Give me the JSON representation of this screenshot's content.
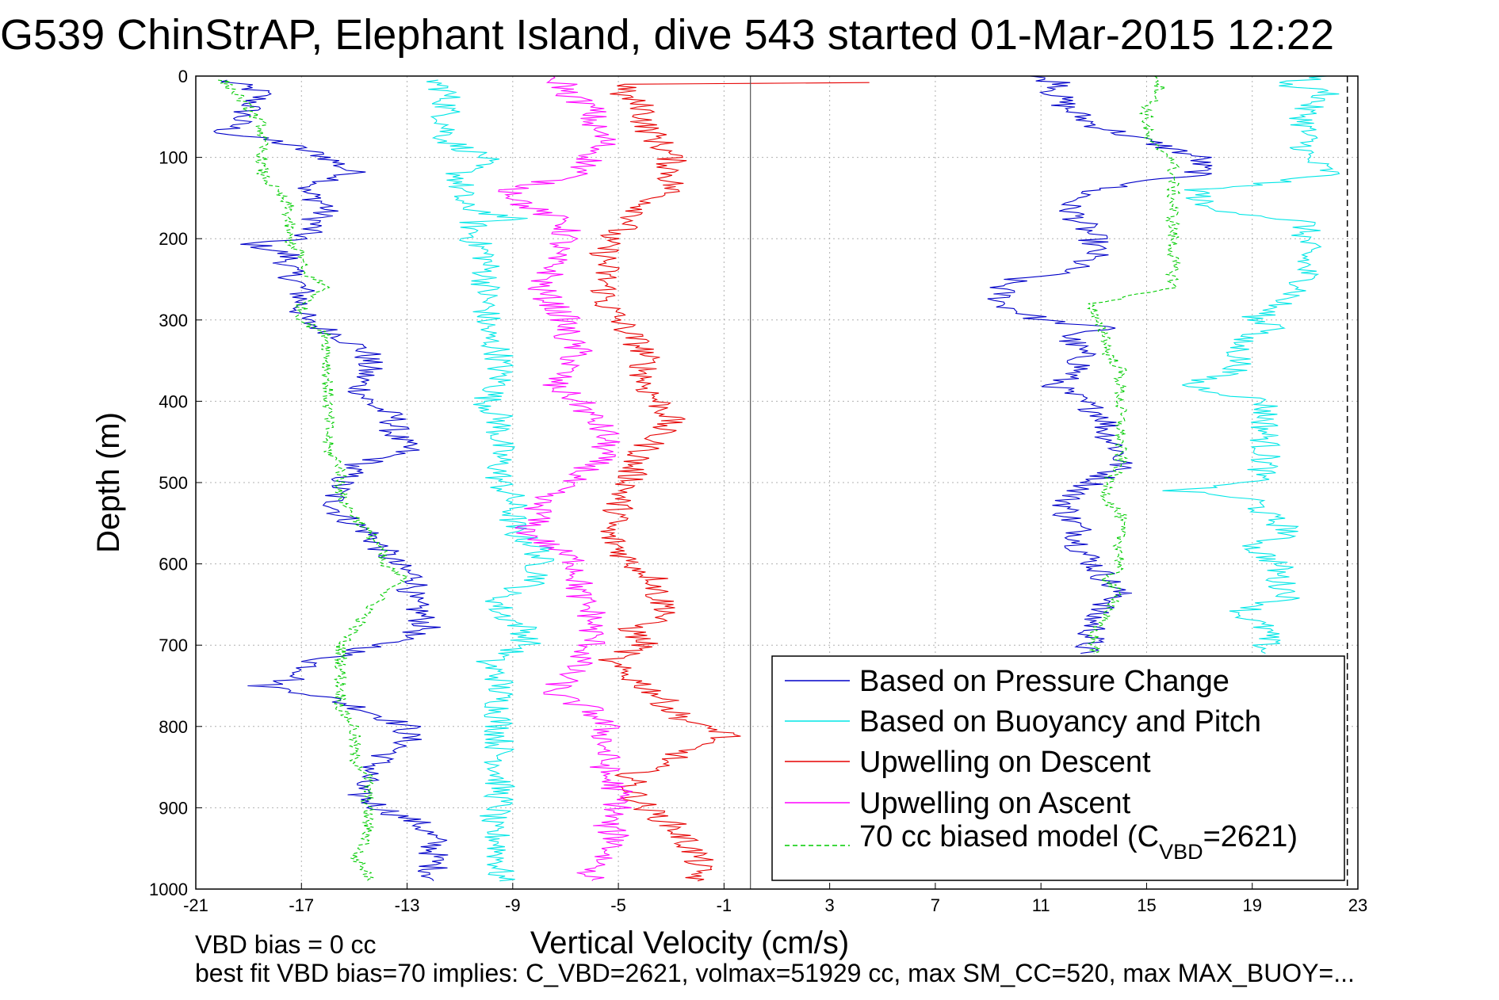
{
  "chart_data": {
    "type": "line",
    "title": "G539 ChinStrAP, Elephant Island, dive 543 started 01-Mar-2015 12:22",
    "xlabel": "Vertical Velocity (cm/s)",
    "ylabel": "Depth (m)",
    "xlim": [
      -21,
      23
    ],
    "ylim": [
      0,
      1000
    ],
    "y_reversed": true,
    "grid": true,
    "x_ticks": [
      "-21",
      "-17",
      "-13",
      "-9",
      "-5",
      "-1",
      "3",
      "7",
      "11",
      "15",
      "19",
      "23"
    ],
    "y_ticks": [
      "0",
      "100",
      "200",
      "300",
      "400",
      "500",
      "600",
      "700",
      "800",
      "900",
      "1000"
    ],
    "legend_position": "bottom-right",
    "legend": [
      "Based on Pressure Change",
      "Based on Buoyancy and Pitch",
      "Upwelling on Descent",
      "Upwelling on Ascent"
    ],
    "legend_model_prefix": "70 cc biased model (C",
    "legend_model_sub": "VBD",
    "legend_model_suffix": "=2621)",
    "colors": {
      "pressure": "#0000c8",
      "buoyancy": "#00e6e6",
      "descent": "#e60000",
      "ascent": "#ff00ff",
      "model": "#00cc00",
      "vline": "#000000",
      "zero_line": "#555555"
    },
    "vertical_line_x": 22.6,
    "zero_line_x": 0,
    "series": [
      {
        "name": "Based on Pressure Change",
        "segments": [
          {
            "depth": [
              5,
              20,
              40,
              60,
              70,
              80,
              100,
              110,
              120,
              140,
              160,
              180,
              200,
              205,
              220,
              240,
              260,
              280,
              300,
              320,
              340,
              360,
              380,
              400,
              420,
              440,
              460,
              480,
              500,
              520,
              540,
              560,
              580,
              600,
              620,
              640,
              660,
              680,
              700,
              720,
              740,
              750,
              760,
              780,
              800,
              820,
              840,
              860,
              880,
              900,
              920,
              940,
              960,
              980,
              990
            ],
            "x": [
              -20,
              -18.5,
              -19,
              -19.5,
              -20,
              -18,
              -16,
              -15.5,
              -15,
              -17,
              -16,
              -16.5,
              -17,
              -19,
              -17.5,
              -17.5,
              -17,
              -17,
              -17,
              -15.5,
              -14.5,
              -14.5,
              -14.8,
              -14.5,
              -13.5,
              -13.5,
              -13,
              -15,
              -15.5,
              -15.8,
              -15.5,
              -14.5,
              -14,
              -13.5,
              -12.5,
              -13,
              -12.5,
              -12.3,
              -14,
              -16.5,
              -17,
              -18.5,
              -16.5,
              -14.5,
              -13,
              -13,
              -14,
              -14.5,
              -15,
              -14,
              -12.5,
              -12,
              -12,
              -12,
              -12
            ]
          },
          {
            "depth": [
              0,
              10,
              20,
              40,
              60,
              80,
              100,
              120,
              130,
              140,
              160,
              180,
              200,
              220,
              240,
              250,
              260,
              280,
              300,
              310,
              320,
              340,
              360,
              380,
              400,
              420,
              440,
              460,
              480,
              500,
              520,
              540,
              560,
              580,
              600,
              620,
              640,
              660,
              680,
              700,
              710
            ],
            "x": [
              10.5,
              12,
              11.5,
              12,
              13,
              15,
              17,
              17,
              15,
              13,
              12,
              12.5,
              13,
              13,
              12,
              10,
              9.5,
              9.5,
              11,
              13.5,
              12,
              12.5,
              12.5,
              11.5,
              12.5,
              13.5,
              13.5,
              14,
              14,
              13,
              12,
              12,
              12.5,
              12.5,
              13,
              13.5,
              14,
              13,
              13,
              12.8,
              12.5
            ]
          }
        ]
      },
      {
        "name": "Based on Buoyancy and Pitch",
        "segments": [
          {
            "depth": [
              5,
              20,
              40,
              60,
              80,
              100,
              120,
              140,
              160,
              175,
              180,
              200,
              220,
              240,
              260,
              280,
              300,
              320,
              340,
              360,
              380,
              400,
              420,
              440,
              460,
              480,
              500,
              520,
              540,
              560,
              580,
              600,
              620,
              640,
              660,
              680,
              700,
              720,
              740,
              760,
              780,
              800,
              820,
              840,
              860,
              880,
              900,
              920,
              940,
              960,
              980,
              990
            ],
            "x": [
              -12,
              -11.5,
              -11.5,
              -11.5,
              -11.5,
              -10,
              -11,
              -11,
              -11,
              -9,
              -10.5,
              -10.5,
              -10,
              -10,
              -10,
              -10,
              -10,
              -10,
              -9.5,
              -9.5,
              -9.5,
              -10,
              -9.5,
              -9.5,
              -9.5,
              -9.5,
              -9.5,
              -9,
              -9,
              -9,
              -8,
              -8,
              -8,
              -9.5,
              -9.5,
              -8.5,
              -8.5,
              -10,
              -9.5,
              -9.5,
              -9.5,
              -9.5,
              -9.5,
              -9.5,
              -9.5,
              -9.5,
              -9.5,
              -10,
              -9.5,
              -9.5,
              -9.5,
              -9.5
            ]
          },
          {
            "depth": [
              0,
              10,
              20,
              40,
              60,
              80,
              100,
              120,
              130,
              140,
              160,
              180,
              200,
              220,
              240,
              260,
              280,
              300,
              310,
              320,
              340,
              360,
              380,
              400,
              420,
              440,
              460,
              480,
              500,
              510,
              520,
              540,
              560,
              580,
              600,
              620,
              640,
              660,
              680,
              700,
              710
            ],
            "x": [
              22,
              20,
              22,
              21,
              21,
              21,
              21,
              22,
              20,
              17,
              17,
              21,
              21,
              21,
              21,
              21,
              20,
              19,
              20.5,
              18.5,
              18.5,
              18.5,
              16.5,
              19.5,
              19.5,
              19.5,
              19.5,
              19.5,
              19,
              16,
              19,
              19.5,
              20.5,
              19,
              20,
              20,
              20.5,
              18.5,
              19.5,
              19.5,
              19.5
            ]
          }
        ]
      },
      {
        "name": "Upwelling on Descent",
        "segments": [
          {
            "depth": [
              8,
              10,
              20,
              40,
              60,
              80,
              100,
              120,
              140,
              160,
              180,
              200,
              220,
              240,
              260,
              280,
              300,
              320,
              340,
              360,
              380,
              400,
              420,
              440,
              460,
              480,
              500,
              520,
              540,
              560,
              580,
              600,
              620,
              640,
              660,
              680,
              700,
              720,
              740,
              760,
              780,
              800,
              810,
              820,
              840,
              860,
              880,
              900,
              920,
              940,
              960,
              980,
              990
            ],
            "x": [
              4.5,
              -4.5,
              -5,
              -4,
              -4,
              -3.5,
              -3,
              -3,
              -3,
              -4,
              -4.5,
              -5.5,
              -5.5,
              -5.5,
              -5.5,
              -5.5,
              -5,
              -4.5,
              -4,
              -4,
              -4,
              -3.5,
              -3,
              -3.5,
              -4,
              -4.5,
              -4.5,
              -5,
              -5,
              -5.5,
              -5,
              -4.5,
              -3.5,
              -3.5,
              -3,
              -4.5,
              -4,
              -5.5,
              -4.5,
              -3.5,
              -3,
              -2,
              -0.5,
              -2,
              -3,
              -4.5,
              -4.5,
              -4,
              -3,
              -2.5,
              -2,
              -2,
              -2
            ]
          }
        ]
      },
      {
        "name": "Upwelling on Ascent",
        "segments": [
          {
            "depth": [
              0,
              10,
              20,
              40,
              60,
              80,
              100,
              120,
              140,
              160,
              180,
              200,
              220,
              240,
              260,
              280,
              300,
              320,
              340,
              360,
              380,
              400,
              420,
              440,
              460,
              480,
              500,
              520,
              540,
              560,
              580,
              600,
              620,
              640,
              660,
              680,
              700,
              720,
              740,
              760,
              780,
              800,
              820,
              840,
              860,
              880,
              900,
              920,
              940,
              960,
              980,
              990
            ],
            "x": [
              -8,
              -7,
              -7,
              -6,
              -6,
              -5.5,
              -6,
              -6.5,
              -9,
              -8.5,
              -7,
              -7,
              -7.5,
              -7.5,
              -8,
              -7.5,
              -7,
              -7,
              -6.5,
              -7,
              -7.5,
              -6.5,
              -6,
              -5.5,
              -5.5,
              -6,
              -7,
              -8,
              -8,
              -8.5,
              -7.5,
              -6.5,
              -6.5,
              -6.5,
              -6,
              -6,
              -6,
              -6.5,
              -7,
              -7.5,
              -6,
              -5.5,
              -5.5,
              -5.5,
              -5.5,
              -5,
              -5,
              -5.5,
              -5,
              -5.5,
              -6,
              -6
            ]
          }
        ]
      },
      {
        "name": "70 cc biased model",
        "dashed": true,
        "segments": [
          {
            "depth": [
              5,
              20,
              40,
              60,
              80,
              100,
              120,
              140,
              160,
              180,
              200,
              220,
              240,
              260,
              280,
              300,
              320,
              340,
              360,
              380,
              400,
              420,
              440,
              460,
              480,
              500,
              520,
              540,
              560,
              580,
              600,
              620,
              640,
              660,
              680,
              700,
              720,
              740,
              760,
              780,
              800,
              820,
              840,
              860,
              880,
              900,
              920,
              940,
              960,
              980,
              990
            ],
            "x": [
              -20,
              -19.5,
              -19,
              -18.5,
              -18.5,
              -18.5,
              -18.5,
              -18,
              -17.5,
              -17.5,
              -17.5,
              -17,
              -17,
              -16,
              -17,
              -17,
              -16,
              -16,
              -16,
              -16,
              -16,
              -16,
              -16,
              -16,
              -15.5,
              -15.5,
              -15.5,
              -15,
              -14.5,
              -14,
              -14,
              -13,
              -14,
              -14.5,
              -15,
              -15.5,
              -15.5,
              -15.5,
              -15.5,
              -15.5,
              -15,
              -15,
              -15,
              -14.5,
              -14.5,
              -14.5,
              -14.5,
              -14.5,
              -15,
              -14.5,
              -14.5
            ]
          },
          {
            "depth": [
              0,
              10,
              20,
              40,
              60,
              80,
              100,
              120,
              140,
              160,
              180,
              200,
              220,
              240,
              260,
              280,
              300,
              320,
              340,
              360,
              380,
              400,
              420,
              440,
              460,
              480,
              500,
              520,
              540,
              560,
              580,
              600,
              620,
              640,
              660,
              680,
              700,
              710
            ],
            "x": [
              15.5,
              15.5,
              15.5,
              15,
              15,
              15,
              16,
              16,
              16,
              16,
              16,
              16,
              16,
              16,
              16,
              13,
              13,
              13.5,
              13.5,
              14,
              14,
              14,
              14,
              14,
              14,
              14,
              13.5,
              13.5,
              14,
              14,
              14,
              14,
              13.5,
              14,
              13.5,
              13,
              13,
              13
            ]
          }
        ]
      }
    ],
    "footnotes": {
      "line1": "VBD bias = 0 cc",
      "line2": "best fit VBD bias=70 implies: C_VBD=2621, volmax=51929 cc, max SM_CC=520, max MAX_BUOY=..."
    }
  }
}
